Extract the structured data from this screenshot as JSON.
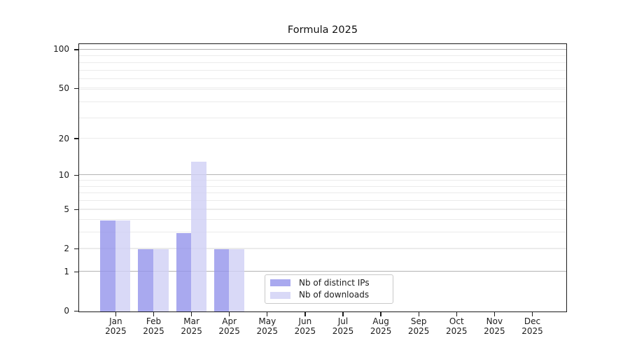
{
  "chart_data": {
    "type": "bar",
    "title": "Formula 2025",
    "x_axis": {
      "months": [
        "Jan",
        "Feb",
        "Mar",
        "Apr",
        "May",
        "Jun",
        "Jul",
        "Aug",
        "Sep",
        "Oct",
        "Nov",
        "Dec"
      ],
      "year": "2025"
    },
    "y_axis": {
      "scale": "log10(1+value)",
      "tick_values": [
        0,
        1,
        2,
        5,
        10,
        20,
        50,
        100
      ],
      "major_gridline_values": [
        1,
        10,
        100
      ],
      "minor_gridline_values": [
        2,
        3,
        4,
        5,
        6,
        7,
        8,
        9,
        20,
        29,
        39,
        49,
        50,
        59,
        69,
        79,
        89
      ],
      "ymax": 109.7
    },
    "series": [
      {
        "name": "Nb of distinct IPs",
        "color": "rgba(148,148,235,0.8)",
        "values": [
          4,
          2,
          3,
          2,
          0,
          0,
          0,
          0,
          0,
          0,
          0,
          0
        ]
      },
      {
        "name": "Nb of downloads",
        "color": "rgba(208,208,245,0.8)",
        "values": [
          4,
          2,
          13,
          2,
          0,
          0,
          0,
          0,
          0,
          0,
          0,
          0
        ]
      }
    ],
    "legend": {
      "position": "lower center"
    },
    "colors": {
      "background": "#ffffff",
      "spine": "#1c1c1c",
      "grid_major": "#b4b4b4",
      "grid_minor": "#ebebeb",
      "legend_border": "#c9c9c9",
      "text": "#1c1c1c"
    }
  }
}
